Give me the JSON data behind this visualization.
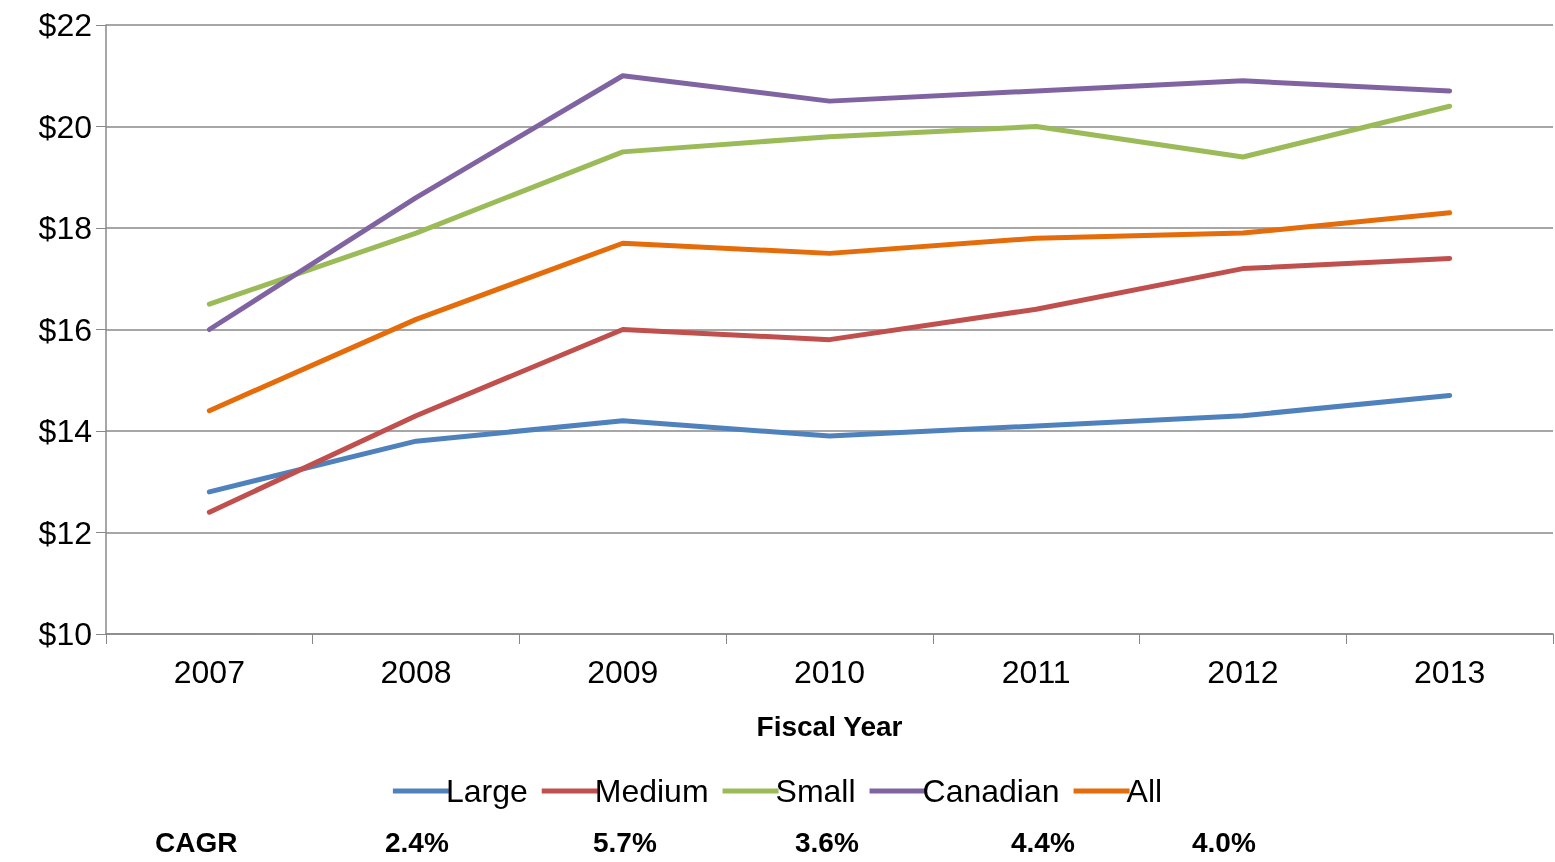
{
  "chart_data": {
    "type": "line",
    "xlabel": "Fiscal Year",
    "categories": [
      "2007",
      "2008",
      "2009",
      "2010",
      "2011",
      "2012",
      "2013"
    ],
    "series": [
      {
        "name": "Large",
        "color": "#4f81bd",
        "values": [
          12.8,
          13.8,
          14.2,
          13.9,
          14.1,
          14.3,
          14.7
        ]
      },
      {
        "name": "Medium",
        "color": "#c0504d",
        "values": [
          12.4,
          14.3,
          16.0,
          15.8,
          16.4,
          17.2,
          17.4
        ]
      },
      {
        "name": "Small",
        "color": "#9bbb59",
        "values": [
          16.5,
          17.9,
          19.5,
          19.8,
          20.0,
          19.4,
          20.4
        ]
      },
      {
        "name": "Canadian",
        "color": "#8064a2",
        "values": [
          16.0,
          18.6,
          21.0,
          20.5,
          20.7,
          20.9,
          20.7
        ]
      },
      {
        "name": "All",
        "color": "#e46c0a",
        "values": [
          14.4,
          16.2,
          17.7,
          17.5,
          17.8,
          17.9,
          18.3
        ]
      }
    ],
    "ylim": [
      10,
      22
    ],
    "yticks": [
      {
        "value": 10,
        "label": "$10"
      },
      {
        "value": 12,
        "label": "$12"
      },
      {
        "value": 14,
        "label": "$14"
      },
      {
        "value": 16,
        "label": "$16"
      },
      {
        "value": 18,
        "label": "$18"
      },
      {
        "value": 20,
        "label": "$20"
      },
      {
        "value": 22,
        "label": "$22"
      }
    ],
    "grid": "y",
    "legend": "bottom",
    "marker": "none",
    "line_style": "solid",
    "annotations": [
      "CAGR",
      "2.4%",
      "5.7%",
      "3.6%",
      "4.4%",
      "4.0%"
    ]
  }
}
